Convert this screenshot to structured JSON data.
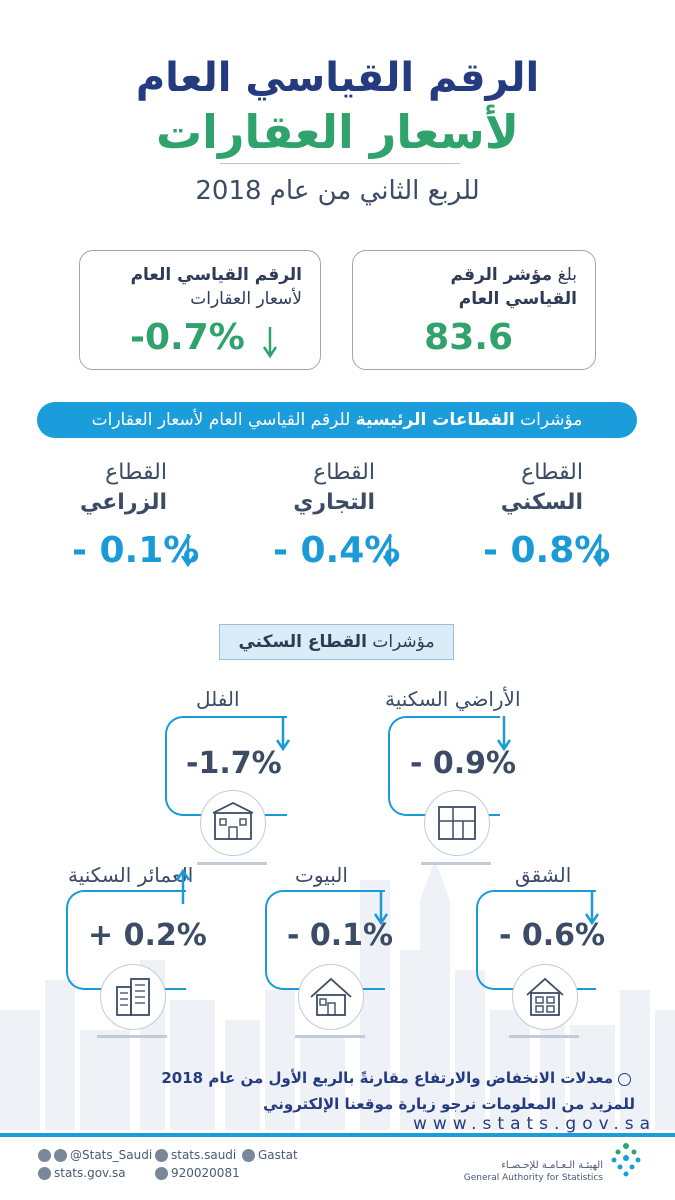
{
  "header": {
    "title_line1": "الرقم القياسي العام",
    "title_line2": "لأسعار العقارات",
    "subtitle": "للربع الثاني من عام 2018"
  },
  "summary": {
    "index_card": {
      "label_prefix": "بلغ",
      "label_bold1": "مؤشر الرقم",
      "label_bold2": "القياسي العام",
      "value": "83.6"
    },
    "change_card": {
      "label_line1": "الرقم القياسي العام",
      "label_line2": "لأسعار العقارات",
      "value": "-0.7%"
    }
  },
  "sectors_banner": {
    "prefix": "مؤشرات",
    "bold": "القطاعات الرئيسية",
    "suffix": "للرقم القياسي العام لأسعار العقارات"
  },
  "sectors": [
    {
      "line1": "القطاع",
      "line2": "السكني",
      "value": "- 0.8%"
    },
    {
      "line1": "القطاع",
      "line2": "التجاري",
      "value": "- 0.4%"
    },
    {
      "line1": "القطاع",
      "line2": "الزراعي",
      "value": "- 0.1%"
    }
  ],
  "residential": {
    "heading_prefix": "مؤشرات",
    "heading_bold": "القطاع السكني",
    "items": [
      {
        "name": "الأراضي السكنية",
        "value": "- 0.9%",
        "icon": "blueprint-icon",
        "direction": "down"
      },
      {
        "name": "الفلل",
        "value": "-1.7%",
        "icon": "villa-icon",
        "direction": "down"
      },
      {
        "name": "الشقق",
        "value": "- 0.6%",
        "icon": "apartment-icon",
        "direction": "down"
      },
      {
        "name": "البيوت",
        "value": "- 0.1%",
        "icon": "house-icon",
        "direction": "down"
      },
      {
        "name": "العمائر السكنية",
        "value": "+ 0.2%",
        "icon": "building-icon",
        "direction": "up"
      }
    ]
  },
  "footer": {
    "note": "معدلات الانخفاض والارتفاع مقارنةً بالربع الأول من عام 2018",
    "more_info": "للمزيد من المعلومات نرجو زيارة موقعنا الإلكتروني",
    "url": "www.stats.gov.sa",
    "social": {
      "twitter": "@Stats_Saudi",
      "facebook": "stats.saudi",
      "linkedin": "Gastat",
      "website": "stats.gov.sa",
      "phone": "920020081"
    },
    "logo_ar": "الهيئـة الـعـامـة للإحـصـاء",
    "logo_en": "General Authority for Statistics"
  },
  "colors": {
    "navy": "#243b80",
    "green": "#2fa36b",
    "blue": "#1a9bd8",
    "banner": "#1b9ddb"
  }
}
